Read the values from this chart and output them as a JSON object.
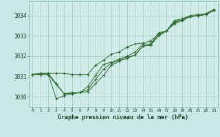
{
  "xlabel": "Graphe pression niveau de la mer (hPa)",
  "background_color": "#c8e8e8",
  "plot_bg_color": "#d0ece8",
  "grid_color": "#a8ccc8",
  "line_color": "#2d6b2d",
  "marker_color": "#2d6b2d",
  "xlim": [
    -0.5,
    23.5
  ],
  "ylim": [
    1029.5,
    1034.7
  ],
  "yticks": [
    1030,
    1031,
    1032,
    1033,
    1034
  ],
  "xticks": [
    0,
    1,
    2,
    3,
    4,
    5,
    6,
    7,
    8,
    9,
    10,
    11,
    12,
    13,
    14,
    15,
    16,
    17,
    18,
    19,
    20,
    21,
    22,
    23
  ],
  "series": [
    [
      1031.1,
      1031.15,
      1031.15,
      1031.15,
      1031.15,
      1031.1,
      1031.1,
      1031.1,
      1031.55,
      1031.8,
      1032.1,
      1032.2,
      1032.45,
      1032.6,
      1032.65,
      1032.75,
      1033.1,
      1033.25,
      1033.75,
      1033.85,
      1034.0,
      1034.05,
      1034.1,
      1034.3
    ],
    [
      1031.1,
      1031.15,
      1031.15,
      1030.65,
      1030.15,
      1030.2,
      1030.2,
      1030.25,
      1030.65,
      1031.05,
      1031.55,
      1031.75,
      1031.9,
      1032.05,
      1032.5,
      1032.55,
      1033.0,
      1033.25,
      1033.7,
      1033.8,
      1033.95,
      1034.0,
      1034.05,
      1034.25
    ],
    [
      1031.1,
      1031.1,
      1031.1,
      1029.9,
      1030.05,
      1030.15,
      1030.2,
      1030.5,
      1031.05,
      1031.6,
      1031.7,
      1031.85,
      1032.0,
      1032.2,
      1032.6,
      1032.6,
      1033.15,
      1033.25,
      1033.6,
      1033.75,
      1033.95,
      1034.0,
      1034.05,
      1034.25
    ],
    [
      1031.1,
      1031.1,
      1031.1,
      1030.6,
      1030.15,
      1030.15,
      1030.2,
      1030.35,
      1030.85,
      1031.35,
      1031.65,
      1031.8,
      1031.95,
      1032.05,
      1032.5,
      1032.55,
      1033.05,
      1033.25,
      1033.65,
      1033.8,
      1033.95,
      1034.0,
      1034.05,
      1034.3
    ]
  ]
}
